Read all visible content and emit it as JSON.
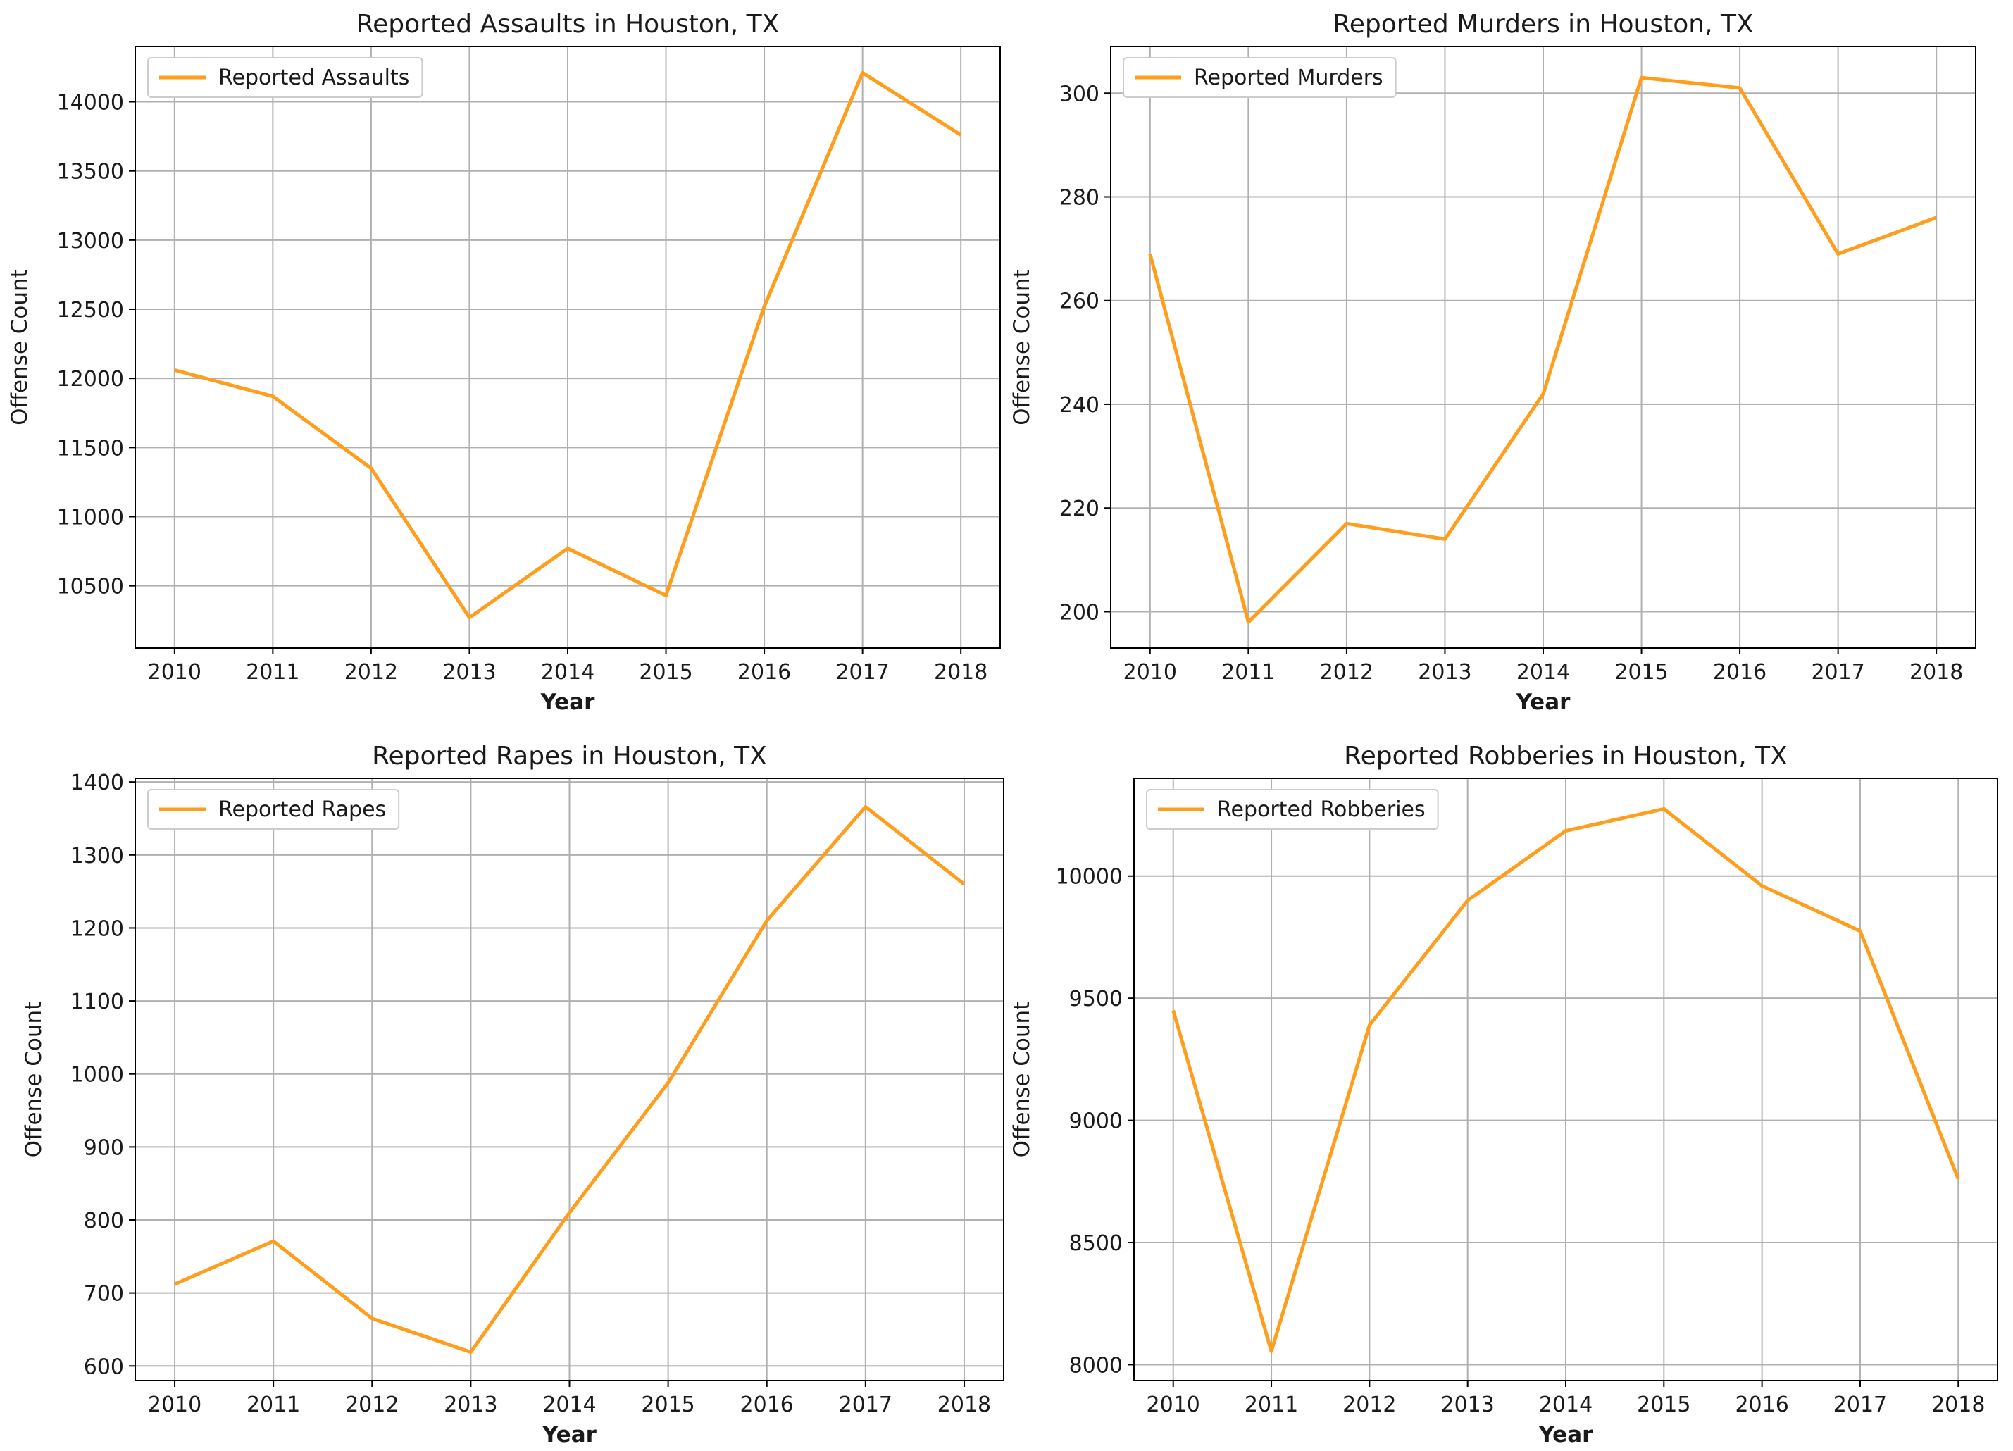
{
  "colors": {
    "series": "#ff9d1d"
  },
  "chart_data": [
    {
      "type": "line",
      "title": "Reported Assaults in Houston, TX",
      "xlabel": "Year",
      "ylabel": "Offense Count",
      "x": [
        2010,
        2011,
        2012,
        2013,
        2014,
        2015,
        2016,
        2017,
        2018
      ],
      "xlim": [
        2009.6,
        2018.4
      ],
      "ylim": [
        10050,
        14400
      ],
      "xticks": [
        "2010",
        "2011",
        "2012",
        "2013",
        "2014",
        "2015",
        "2016",
        "2017",
        "2018"
      ],
      "yticks": [
        10500,
        11000,
        11500,
        12000,
        12500,
        13000,
        13500,
        14000
      ],
      "ytick_labels": [
        "10500",
        "11000",
        "11500",
        "12000",
        "12500",
        "13000",
        "13500",
        "14000"
      ],
      "grid": true,
      "legend": "upper left",
      "series": [
        {
          "name": "Reported Assaults",
          "values": [
            12060,
            11870,
            11350,
            10270,
            10770,
            10430,
            12520,
            14210,
            13760
          ]
        }
      ]
    },
    {
      "type": "line",
      "title": "Reported Murders in Houston, TX",
      "xlabel": "Year",
      "ylabel": "Offense Count",
      "x": [
        2010,
        2011,
        2012,
        2013,
        2014,
        2015,
        2016,
        2017,
        2018
      ],
      "xlim": [
        2009.6,
        2018.4
      ],
      "ylim": [
        193,
        309
      ],
      "xticks": [
        "2010",
        "2011",
        "2012",
        "2013",
        "2014",
        "2015",
        "2016",
        "2017",
        "2018"
      ],
      "yticks": [
        200,
        220,
        240,
        260,
        280,
        300
      ],
      "ytick_labels": [
        "200",
        "220",
        "240",
        "260",
        "280",
        "300"
      ],
      "grid": true,
      "legend": "upper left",
      "series": [
        {
          "name": "Reported Murders",
          "values": [
            269,
            198,
            217,
            214,
            242,
            303,
            301,
            269,
            276
          ]
        }
      ]
    },
    {
      "type": "line",
      "title": "Reported Rapes in Houston, TX",
      "xlabel": "Year",
      "ylabel": "Offense Count",
      "x": [
        2010,
        2011,
        2012,
        2013,
        2014,
        2015,
        2016,
        2017,
        2018
      ],
      "xlim": [
        2009.6,
        2018.4
      ],
      "ylim": [
        580,
        1405
      ],
      "xticks": [
        "2010",
        "2011",
        "2012",
        "2013",
        "2014",
        "2015",
        "2016",
        "2017",
        "2018"
      ],
      "yticks": [
        600,
        700,
        800,
        900,
        1000,
        1100,
        1200,
        1300,
        1400
      ],
      "ytick_labels": [
        "600",
        "700",
        "800",
        "900",
        "1000",
        "1100",
        "1200",
        "1300",
        "1400"
      ],
      "grid": true,
      "legend": "upper left",
      "series": [
        {
          "name": "Reported Rapes",
          "values": [
            712,
            771,
            665,
            619,
            810,
            988,
            1210,
            1366,
            1260
          ]
        }
      ]
    },
    {
      "type": "line",
      "title": "Reported Robberies in Houston, TX",
      "xlabel": "Year",
      "ylabel": "Offense Count",
      "x": [
        2010,
        2011,
        2012,
        2013,
        2014,
        2015,
        2016,
        2017,
        2018
      ],
      "xlim": [
        2009.6,
        2018.4
      ],
      "ylim": [
        7935,
        10400
      ],
      "xticks": [
        "2010",
        "2011",
        "2012",
        "2013",
        "2014",
        "2015",
        "2016",
        "2017",
        "2018"
      ],
      "yticks": [
        8000,
        8500,
        9000,
        9500,
        10000
      ],
      "ytick_labels": [
        "8000",
        "8500",
        "9000",
        "9500",
        "10000"
      ],
      "grid": true,
      "legend": "upper left",
      "series": [
        {
          "name": "Reported Robberies",
          "values": [
            9450,
            8055,
            9390,
            9900,
            10185,
            10275,
            9960,
            9775,
            8760
          ]
        }
      ]
    }
  ]
}
